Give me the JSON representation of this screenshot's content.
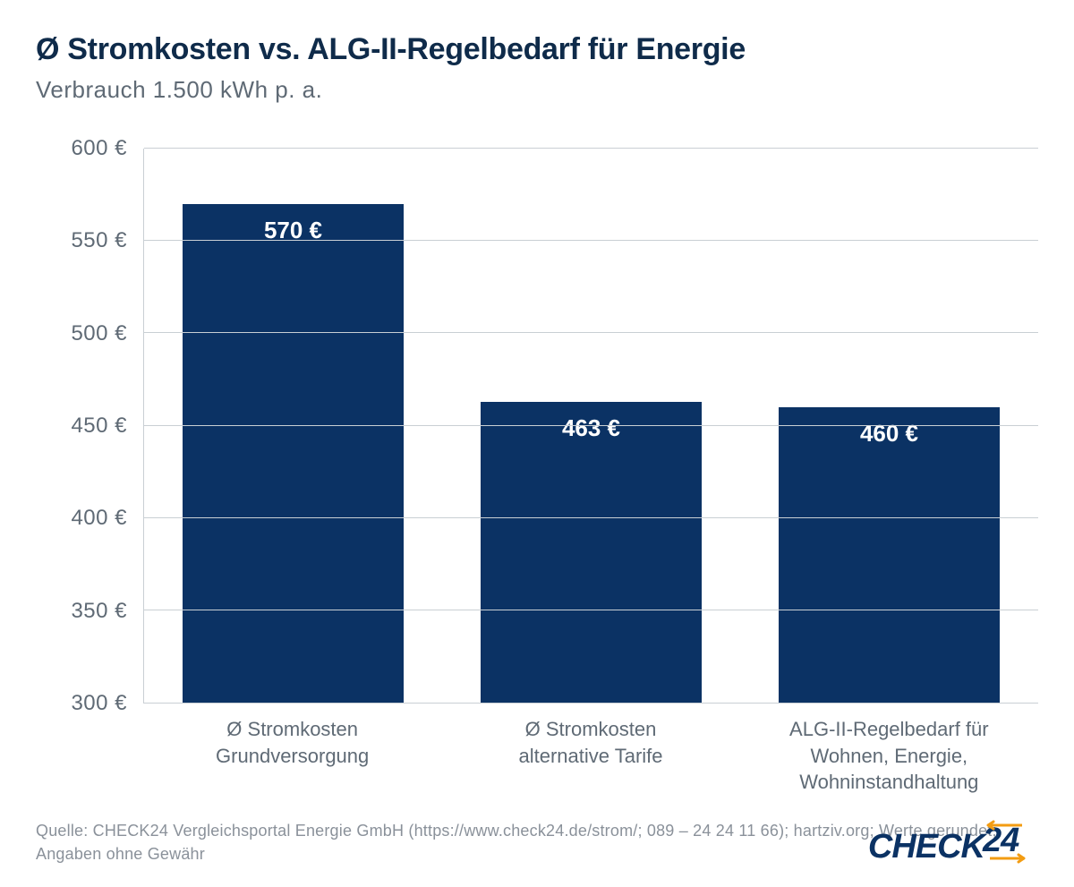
{
  "title": "Ø Stromkosten vs. ALG-II-Regelbedarf für Energie",
  "subtitle": "Verbrauch 1.500 kWh p. a.",
  "chart": {
    "type": "bar",
    "y_min": 300,
    "y_max": 600,
    "y_tick_step": 50,
    "y_ticks": [
      300,
      350,
      400,
      450,
      500,
      550,
      600
    ],
    "y_tick_labels": [
      "300 €",
      "350 €",
      "400 €",
      "450 €",
      "500 €",
      "550 €",
      "600 €"
    ],
    "categories": [
      "Ø Stromkosten Grundversorgung",
      "Ø Stromkosten alternative Tarife",
      "ALG-II-Regelbedarf für Wohnen, Energie, Wohninstandhaltung"
    ],
    "values": [
      570,
      463,
      460
    ],
    "value_labels": [
      "570 €",
      "463 €",
      "460 €"
    ],
    "bar_color": "#0b3264",
    "bar_label_color": "#ffffff",
    "bar_label_fontsize": 26,
    "bar_width_ratio": 0.74,
    "grid_color": "#c9cfd4",
    "axis_color": "#c9cfd4",
    "tick_label_color": "#5f6a75",
    "tick_label_fontsize": 24,
    "x_label_fontsize": 22,
    "title_color": "#0f2b4a",
    "title_fontsize": 34,
    "subtitle_color": "#5f6a75",
    "subtitle_fontsize": 26,
    "background_color": "#ffffff"
  },
  "source": "Quelle: CHECK24 Vergleichsportal Energie GmbH (https://www.check24.de/strom/; 089 – 24 24 11 66); hartziv.org; Werte gerundet; Angaben ohne Gewähr",
  "logo": {
    "text_a": "CHECK",
    "text_b": "24",
    "color": "#0b3264",
    "accent_color": "#f39c12"
  }
}
